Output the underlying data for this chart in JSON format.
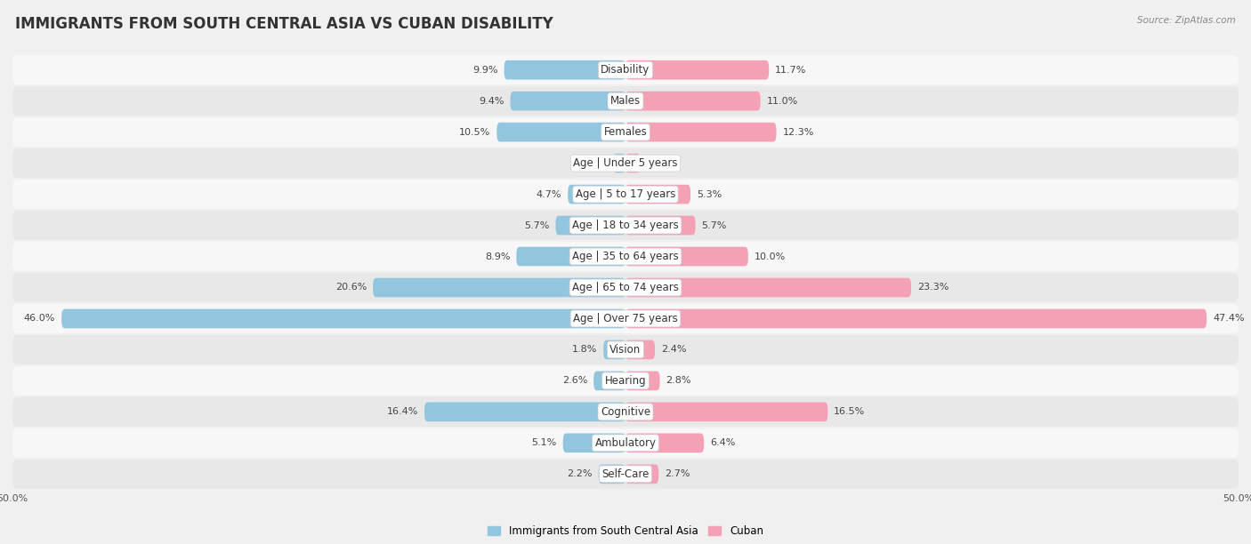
{
  "title": "IMMIGRANTS FROM SOUTH CENTRAL ASIA VS CUBAN DISABILITY",
  "source": "Source: ZipAtlas.com",
  "categories": [
    "Disability",
    "Males",
    "Females",
    "Age | Under 5 years",
    "Age | 5 to 17 years",
    "Age | 18 to 34 years",
    "Age | 35 to 64 years",
    "Age | 65 to 74 years",
    "Age | Over 75 years",
    "Vision",
    "Hearing",
    "Cognitive",
    "Ambulatory",
    "Self-Care"
  ],
  "left_values": [
    9.9,
    9.4,
    10.5,
    1.0,
    4.7,
    5.7,
    8.9,
    20.6,
    46.0,
    1.8,
    2.6,
    16.4,
    5.1,
    2.2
  ],
  "right_values": [
    11.7,
    11.0,
    12.3,
    1.2,
    5.3,
    5.7,
    10.0,
    23.3,
    47.4,
    2.4,
    2.8,
    16.5,
    6.4,
    2.7
  ],
  "left_color": "#92C5DE",
  "right_color": "#F4A0B5",
  "axis_max": 50.0,
  "legend_left": "Immigrants from South Central Asia",
  "legend_right": "Cuban",
  "background_color": "#f0f0f0",
  "row_color_even": "#e8e8e8",
  "row_color_odd": "#f7f7f7",
  "title_fontsize": 12,
  "label_fontsize": 8.5,
  "value_fontsize": 8,
  "source_fontsize": 7.5
}
